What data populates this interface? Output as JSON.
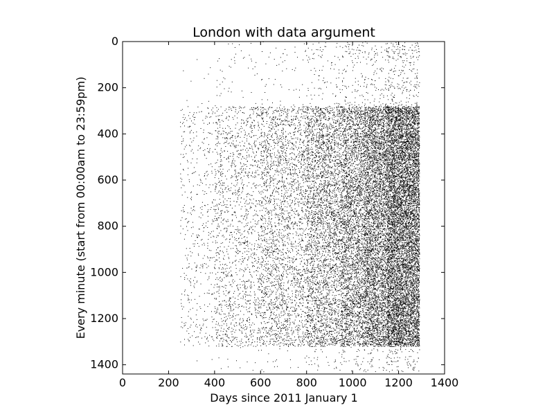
{
  "chart_data": {
    "type": "scatter",
    "title": "London with data argument",
    "xlabel": "Days since 2011 January 1",
    "ylabel": "Every minute (start from 00:00am to 23:59pm)",
    "xlim": [
      0,
      1400
    ],
    "ylim": [
      1440,
      0
    ],
    "y_inverted": true,
    "x_ticks": [
      0,
      200,
      400,
      600,
      800,
      1000,
      1200,
      1400
    ],
    "y_ticks": [
      0,
      200,
      400,
      600,
      800,
      1000,
      1200,
      1400
    ],
    "grid": false,
    "legend": "none",
    "marker_color": "#000000",
    "marker": "pixel",
    "data_extent": {
      "x_range": [
        250,
        1290
      ],
      "y_range": [
        0,
        1430
      ]
    },
    "density_profile": [
      {
        "x_from": 250,
        "x_to": 400,
        "relative_density": 0.05
      },
      {
        "x_from": 400,
        "x_to": 600,
        "relative_density": 0.12
      },
      {
        "x_from": 600,
        "x_to": 800,
        "relative_density": 0.2
      },
      {
        "x_from": 800,
        "x_to": 950,
        "relative_density": 0.35
      },
      {
        "x_from": 950,
        "x_to": 1050,
        "relative_density": 0.5
      },
      {
        "x_from": 1050,
        "x_to": 1150,
        "relative_density": 0.7
      },
      {
        "x_from": 1150,
        "x_to": 1290,
        "relative_density": 1.0
      }
    ]
  }
}
